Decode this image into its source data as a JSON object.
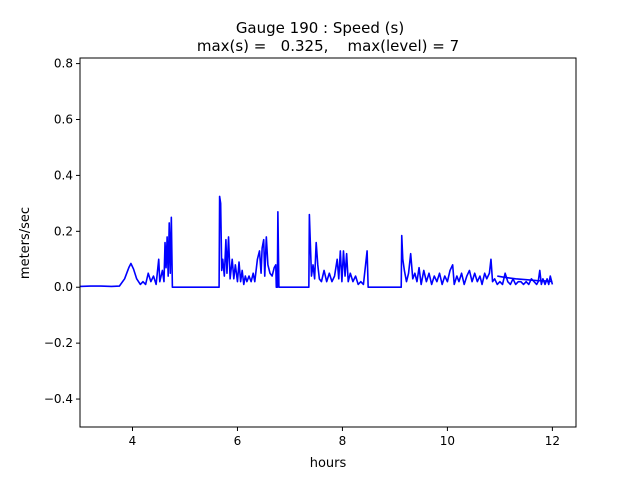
{
  "chart_data": {
    "type": "line",
    "title_line1": "Gauge 190 : Speed (s)",
    "title_line2": "max(s) =   0.325,    max(level) = 7",
    "xlabel": "hours",
    "ylabel": "meters/sec",
    "xlim": [
      3.0,
      12.45
    ],
    "ylim": [
      -0.5,
      0.82
    ],
    "xticks": [
      4,
      6,
      8,
      10,
      12
    ],
    "yticks": [
      -0.4,
      -0.2,
      0.0,
      0.2,
      0.4,
      0.6,
      0.8
    ],
    "xtick_labels": [
      "4",
      "6",
      "8",
      "10",
      "12"
    ],
    "ytick_labels": [
      "−0.4",
      "−0.2",
      "0.0",
      "0.2",
      "0.4",
      "0.6",
      "0.8"
    ],
    "grid": false,
    "legend": "none",
    "series": [
      {
        "color": "#0000ff",
        "points": [
          [
            3.0,
            0.003
          ],
          [
            3.2,
            0.004
          ],
          [
            3.4,
            0.004
          ],
          [
            3.6,
            0.003
          ],
          [
            3.75,
            0.004
          ],
          [
            3.85,
            0.03
          ],
          [
            3.93,
            0.07
          ],
          [
            3.97,
            0.085
          ],
          [
            4.02,
            0.065
          ],
          [
            4.08,
            0.03
          ],
          [
            4.15,
            0.01
          ],
          [
            4.2,
            0.02
          ],
          [
            4.25,
            0.01
          ],
          [
            4.3,
            0.05
          ],
          [
            4.35,
            0.02
          ],
          [
            4.4,
            0.04
          ],
          [
            4.45,
            0.01
          ],
          [
            4.5,
            0.1
          ],
          [
            4.52,
            0.02
          ],
          [
            4.57,
            0.06
          ],
          [
            4.6,
            0.02
          ],
          [
            4.62,
            0.16
          ],
          [
            4.64,
            0.07
          ],
          [
            4.66,
            0.18
          ],
          [
            4.68,
            0.04
          ],
          [
            4.7,
            0.23
          ],
          [
            4.72,
            0.05
          ],
          [
            4.74,
            0.25
          ],
          [
            4.76,
            0.0
          ],
          [
            5.0,
            0.0
          ],
          [
            5.3,
            0.0
          ],
          [
            5.5,
            0.0
          ],
          [
            5.65,
            0.0
          ],
          [
            5.66,
            0.325
          ],
          [
            5.68,
            0.3
          ],
          [
            5.7,
            0.06
          ],
          [
            5.72,
            0.1
          ],
          [
            5.75,
            0.04
          ],
          [
            5.78,
            0.17
          ],
          [
            5.8,
            0.05
          ],
          [
            5.83,
            0.18
          ],
          [
            5.86,
            0.03
          ],
          [
            5.9,
            0.1
          ],
          [
            5.93,
            0.03
          ],
          [
            5.96,
            0.08
          ],
          [
            6.0,
            0.02
          ],
          [
            6.03,
            0.09
          ],
          [
            6.06,
            0.02
          ],
          [
            6.09,
            0.06
          ],
          [
            6.12,
            0.01
          ],
          [
            6.15,
            0.04
          ],
          [
            6.18,
            0.02
          ],
          [
            6.22,
            0.04
          ],
          [
            6.26,
            0.02
          ],
          [
            6.3,
            0.05
          ],
          [
            6.33,
            0.02
          ],
          [
            6.38,
            0.1
          ],
          [
            6.42,
            0.13
          ],
          [
            6.45,
            0.05
          ],
          [
            6.47,
            0.14
          ],
          [
            6.5,
            0.17
          ],
          [
            6.52,
            0.04
          ],
          [
            6.55,
            0.18
          ],
          [
            6.58,
            0.08
          ],
          [
            6.62,
            0.05
          ],
          [
            6.66,
            0.04
          ],
          [
            6.7,
            0.07
          ],
          [
            6.73,
            0.08
          ],
          [
            6.74,
            0.0
          ],
          [
            6.76,
            0.0
          ],
          [
            6.77,
            0.27
          ],
          [
            6.79,
            0.0
          ],
          [
            7.0,
            0.0
          ],
          [
            7.2,
            0.0
          ],
          [
            7.36,
            0.0
          ],
          [
            7.37,
            0.26
          ],
          [
            7.39,
            0.15
          ],
          [
            7.41,
            0.04
          ],
          [
            7.44,
            0.08
          ],
          [
            7.47,
            0.03
          ],
          [
            7.5,
            0.16
          ],
          [
            7.53,
            0.08
          ],
          [
            7.56,
            0.03
          ],
          [
            7.6,
            0.02
          ],
          [
            7.65,
            0.06
          ],
          [
            7.7,
            0.02
          ],
          [
            7.75,
            0.05
          ],
          [
            7.8,
            0.02
          ],
          [
            7.85,
            0.04
          ],
          [
            7.9,
            0.1
          ],
          [
            7.93,
            0.03
          ],
          [
            7.96,
            0.13
          ],
          [
            7.99,
            0.02
          ],
          [
            8.02,
            0.13
          ],
          [
            8.05,
            0.04
          ],
          [
            8.08,
            0.12
          ],
          [
            8.11,
            0.02
          ],
          [
            8.15,
            0.05
          ],
          [
            8.2,
            0.02
          ],
          [
            8.25,
            0.04
          ],
          [
            8.3,
            0.01
          ],
          [
            8.35,
            0.02
          ],
          [
            8.4,
            0.01
          ],
          [
            8.47,
            0.13
          ],
          [
            8.49,
            0.0
          ],
          [
            8.8,
            0.0
          ],
          [
            9.0,
            0.0
          ],
          [
            9.12,
            0.0
          ],
          [
            9.13,
            0.185
          ],
          [
            9.15,
            0.1
          ],
          [
            9.18,
            0.06
          ],
          [
            9.22,
            0.02
          ],
          [
            9.26,
            0.05
          ],
          [
            9.3,
            0.12
          ],
          [
            9.34,
            0.03
          ],
          [
            9.38,
            0.05
          ],
          [
            9.42,
            0.02
          ],
          [
            9.46,
            0.07
          ],
          [
            9.5,
            0.01
          ],
          [
            9.55,
            0.06
          ],
          [
            9.6,
            0.02
          ],
          [
            9.65,
            0.05
          ],
          [
            9.7,
            0.01
          ],
          [
            9.75,
            0.04
          ],
          [
            9.8,
            0.02
          ],
          [
            9.85,
            0.05
          ],
          [
            9.9,
            0.01
          ],
          [
            9.95,
            0.04
          ],
          [
            10.0,
            0.02
          ],
          [
            10.05,
            0.06
          ],
          [
            10.1,
            0.08
          ],
          [
            10.13,
            0.01
          ],
          [
            10.18,
            0.04
          ],
          [
            10.22,
            0.02
          ],
          [
            10.27,
            0.05
          ],
          [
            10.32,
            0.01
          ],
          [
            10.37,
            0.04
          ],
          [
            10.42,
            0.06
          ],
          [
            10.47,
            0.02
          ],
          [
            10.52,
            0.05
          ],
          [
            10.57,
            0.02
          ],
          [
            10.62,
            0.04
          ],
          [
            10.66,
            0.01
          ],
          [
            10.71,
            0.05
          ],
          [
            10.75,
            0.03
          ],
          [
            10.8,
            0.05
          ],
          [
            10.83,
            0.1
          ],
          [
            10.86,
            0.02
          ],
          [
            10.9,
            0.03
          ],
          [
            10.95,
            0.01
          ],
          [
            11.0,
            0.02
          ],
          [
            11.05,
            0.01
          ],
          [
            11.1,
            0.05
          ],
          [
            11.15,
            0.02
          ],
          [
            11.2,
            0.01
          ],
          [
            11.25,
            0.03
          ],
          [
            11.3,
            0.01
          ],
          [
            11.35,
            0.02
          ],
          [
            11.4,
            0.02
          ],
          [
            11.45,
            0.01
          ],
          [
            11.5,
            0.02
          ],
          [
            11.55,
            0.01
          ],
          [
            11.6,
            0.03
          ],
          [
            11.65,
            0.02
          ],
          [
            11.7,
            0.01
          ],
          [
            11.73,
            0.02
          ],
          [
            11.76,
            0.06
          ],
          [
            11.79,
            0.01
          ],
          [
            11.82,
            0.03
          ],
          [
            11.86,
            0.01
          ],
          [
            11.9,
            0.03
          ],
          [
            11.93,
            0.01
          ],
          [
            11.96,
            0.04
          ],
          [
            12.0,
            0.01
          ]
        ]
      },
      {
        "color": "#0000ff",
        "points": [
          [
            10.95,
            0.04
          ],
          [
            11.1,
            0.035
          ],
          [
            11.3,
            0.03
          ],
          [
            11.5,
            0.027
          ],
          [
            11.7,
            0.024
          ],
          [
            11.9,
            0.022
          ],
          [
            12.0,
            0.02
          ]
        ]
      }
    ]
  }
}
